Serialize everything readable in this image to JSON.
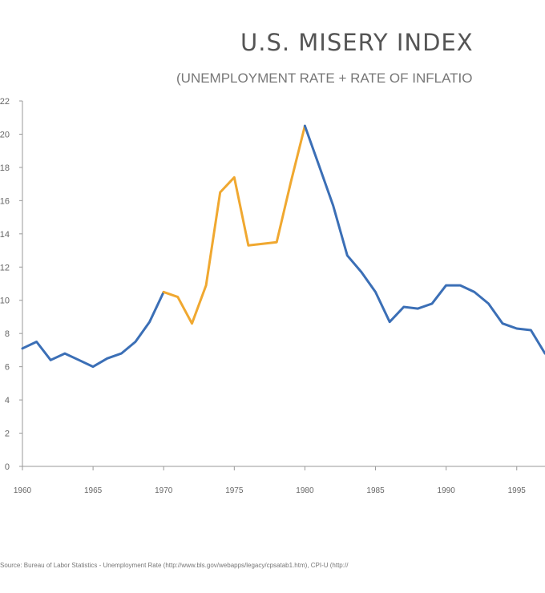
{
  "chart_data": {
    "type": "line",
    "title": "U.S. MISERY INDEX",
    "subtitle": "(UNEMPLOYMENT RATE + RATE OF INFLATIO",
    "xlabel": "",
    "ylabel": "",
    "xlim": [
      1960,
      1997
    ],
    "ylim": [
      0,
      22
    ],
    "x_ticks": [
      1960,
      1965,
      1970,
      1975,
      1980,
      1985,
      1990,
      1995
    ],
    "y_tick_labels": [
      "0",
      "2",
      "4",
      "6",
      "8",
      "10",
      "12",
      "14",
      "16",
      "18",
      "20",
      "22"
    ],
    "y_tick_values": [
      0,
      2,
      4,
      6,
      8,
      10,
      12,
      14,
      16,
      18,
      20,
      22
    ],
    "grid": false,
    "legend": "none",
    "series": [
      {
        "color": "#3b6fb6",
        "points": [
          [
            1960,
            7.1
          ],
          [
            1961,
            7.5
          ],
          [
            1962,
            6.4
          ],
          [
            1963,
            6.8
          ],
          [
            1964,
            6.4
          ],
          [
            1965,
            6.0
          ],
          [
            1966,
            6.5
          ],
          [
            1967,
            6.8
          ],
          [
            1968,
            7.5
          ],
          [
            1969,
            8.7
          ],
          [
            1970,
            10.5
          ]
        ]
      },
      {
        "color": "#f0a830",
        "points": [
          [
            1970,
            10.5
          ],
          [
            1971,
            10.2
          ],
          [
            1972,
            8.6
          ],
          [
            1973,
            10.9
          ],
          [
            1974,
            16.5
          ],
          [
            1975,
            17.4
          ],
          [
            1976,
            13.3
          ],
          [
            1977,
            13.4
          ],
          [
            1978,
            13.5
          ],
          [
            1979,
            17.1
          ],
          [
            1980,
            20.5
          ]
        ]
      },
      {
        "color": "#3b6fb6",
        "points": [
          [
            1980,
            20.5
          ],
          [
            1981,
            18.1
          ],
          [
            1982,
            15.7
          ],
          [
            1983,
            12.7
          ],
          [
            1984,
            11.7
          ],
          [
            1985,
            10.5
          ],
          [
            1986,
            8.7
          ],
          [
            1987,
            9.6
          ],
          [
            1988,
            9.5
          ],
          [
            1989,
            9.8
          ],
          [
            1990,
            10.9
          ],
          [
            1991,
            10.9
          ],
          [
            1992,
            10.5
          ],
          [
            1993,
            9.8
          ],
          [
            1994,
            8.6
          ],
          [
            1995,
            8.3
          ],
          [
            1996,
            8.2
          ],
          [
            1997,
            6.8
          ]
        ]
      }
    ]
  },
  "source_note": "Source: Bureau of Labor Statistics - Unemployment Rate (http://www.bls.gov/webapps/legacy/cpsatab1.htm), CPI-U (http://"
}
